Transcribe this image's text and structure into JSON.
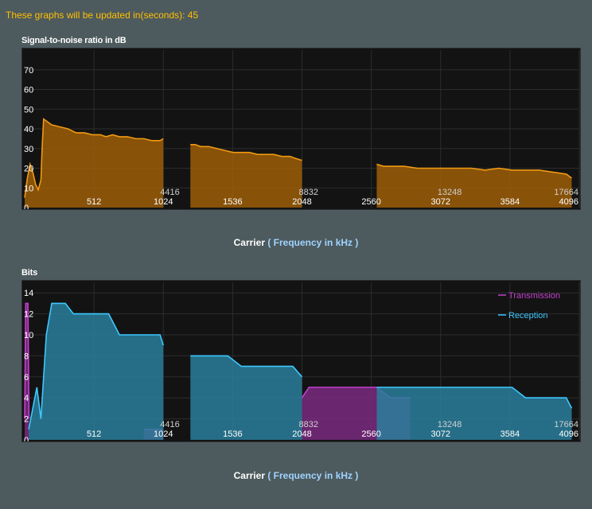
{
  "notice": "These graphs will be updated in(seconds): 45",
  "carrier_label": {
    "main": "Carrier",
    "open": "(",
    "unit": "Frequency in kHz",
    "close": ")"
  },
  "colors": {
    "snr": "#f09a10",
    "snr_fill": "#9e5e08",
    "rx": "#3cc8ff",
    "rx_fill": "#2a7f9c",
    "tx": "#c53fd0",
    "tx_fill": "#7a2a80"
  },
  "chart_data": [
    {
      "type": "area",
      "title": "Signal-to-noise ratio in dB",
      "xlim": [
        0,
        4096
      ],
      "ylim": [
        0,
        80
      ],
      "yticks": [
        0,
        10,
        20,
        30,
        40,
        50,
        60,
        70
      ],
      "xticks": [
        512,
        1024,
        1536,
        2048,
        2560,
        3072,
        3584,
        4096
      ],
      "freq_ticks": [
        {
          "at": 1024,
          "label": "4416"
        },
        {
          "at": 2048,
          "label": "8832"
        },
        {
          "at": 3072,
          "label": "13248"
        },
        {
          "at": 4096,
          "label": "17664"
        }
      ],
      "grid": true,
      "series": [
        {
          "segments": [
            {
              "x": [
                0,
                20,
                40,
                60,
                80,
                100,
                120,
                130,
                140,
                160,
                200,
                260,
                320,
                380,
                440,
                500,
                560,
                600,
                650,
                700,
                760,
                820,
                880,
                940,
                1000,
                1024
              ],
              "y": [
                5,
                15,
                22,
                18,
                12,
                9,
                14,
                32,
                45,
                44,
                42,
                41,
                40,
                38,
                38,
                37,
                37,
                36,
                37,
                36,
                36,
                35,
                35,
                34,
                34,
                35
              ]
            },
            {
              "x": [
                1224,
                1260,
                1300,
                1360,
                1420,
                1480,
                1540,
                1600,
                1660,
                1720,
                1780,
                1840,
                1900,
                1960,
                2000,
                2048
              ],
              "y": [
                32,
                32,
                31,
                31,
                30,
                29,
                28,
                28,
                28,
                27,
                27,
                27,
                26,
                26,
                25,
                24
              ]
            },
            {
              "x": [
                2600,
                2650,
                2700,
                2800,
                2900,
                3000,
                3100,
                3200,
                3300,
                3400,
                3500,
                3600,
                3700,
                3800,
                3900,
                4000,
                4040
              ],
              "y": [
                22,
                21,
                21,
                21,
                20,
                20,
                20,
                20,
                20,
                19,
                20,
                19,
                19,
                19,
                18,
                17,
                15
              ]
            }
          ]
        }
      ]
    },
    {
      "type": "area",
      "title": "Bits",
      "xlim": [
        0,
        4096
      ],
      "ylim": [
        0,
        15
      ],
      "yticks": [
        0,
        2,
        4,
        6,
        8,
        10,
        12,
        14
      ],
      "xticks": [
        512,
        1024,
        1536,
        2048,
        2560,
        3072,
        3584,
        4096
      ],
      "freq_ticks": [
        {
          "at": 1024,
          "label": "4416"
        },
        {
          "at": 2048,
          "label": "8832"
        },
        {
          "at": 3072,
          "label": "13248"
        },
        {
          "at": 4096,
          "label": "17664"
        }
      ],
      "grid": true,
      "legend_position": "top-right",
      "series": [
        {
          "name": "Transmission",
          "segments": [
            {
              "x": [
                0,
                8,
                16,
                24,
                32
              ],
              "y": [
                2,
                13,
                13,
                13,
                2
              ]
            },
            {
              "x": [
                880,
                920,
                960,
                1000,
                1024
              ],
              "y": [
                1,
                1,
                1,
                1,
                1
              ]
            },
            {
              "x": [
                2048,
                2100,
                2200,
                2300,
                2400,
                2500,
                2600,
                2700,
                2800,
                2848
              ],
              "y": [
                4,
                5,
                5,
                5,
                5,
                5,
                5,
                4,
                4,
                4
              ]
            }
          ]
        },
        {
          "name": "Reception",
          "segments": [
            {
              "x": [
                30,
                60,
                90,
                120,
                140,
                160,
                200,
                240,
                300,
                360,
                420,
                480,
                560,
                620,
                700,
                780,
                860,
                940,
                1000,
                1024
              ],
              "y": [
                1,
                3,
                5,
                2,
                6,
                10,
                13,
                13,
                13,
                12,
                12,
                12,
                12,
                12,
                10,
                10,
                10,
                10,
                10,
                9
              ]
            },
            {
              "x": [
                1224,
                1300,
                1400,
                1500,
                1600,
                1700,
                1800,
                1900,
                1980,
                2048
              ],
              "y": [
                8,
                8,
                8,
                8,
                7,
                7,
                7,
                7,
                7,
                6
              ]
            },
            {
              "x": [
                2600,
                2700,
                2800,
                2900,
                3000,
                3100,
                3200,
                3300,
                3400,
                3500,
                3600,
                3700,
                3800,
                3900,
                4000,
                4040
              ],
              "y": [
                5,
                5,
                5,
                5,
                5,
                5,
                5,
                5,
                5,
                5,
                5,
                4,
                4,
                4,
                4,
                3
              ]
            }
          ]
        }
      ]
    }
  ]
}
